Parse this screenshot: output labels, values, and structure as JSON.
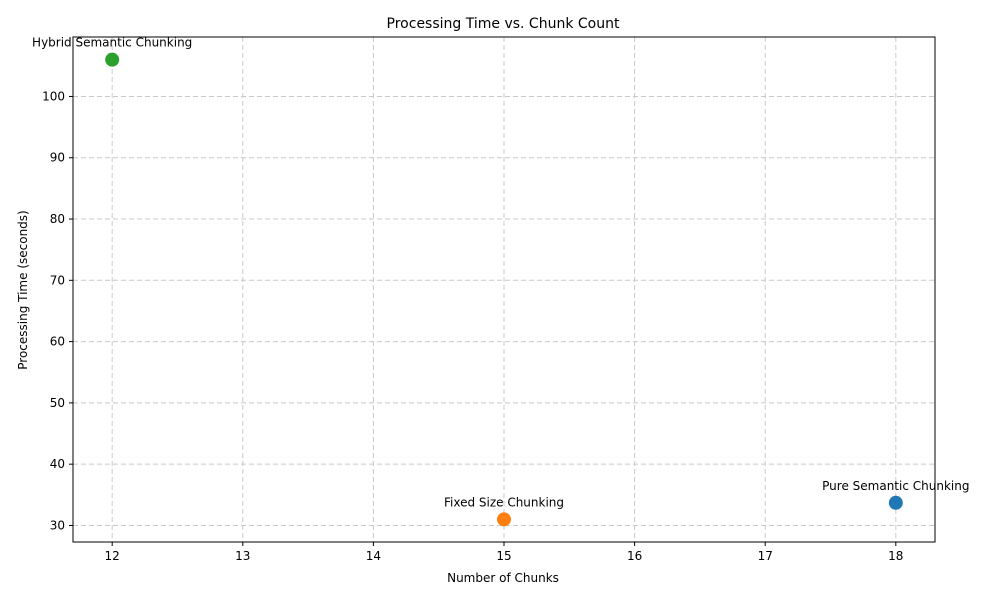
{
  "chart_data": {
    "type": "scatter",
    "title": "Processing Time vs. Chunk Count",
    "xlabel": "Number of Chunks",
    "ylabel": "Processing Time (seconds)",
    "xlim": [
      11.7,
      18.3
    ],
    "ylim": [
      27.3,
      109.7
    ],
    "xticks": [
      12,
      13,
      14,
      15,
      16,
      17,
      18
    ],
    "yticks": [
      30,
      40,
      50,
      60,
      70,
      80,
      90,
      100
    ],
    "grid": true,
    "points": [
      {
        "label": "Pure Semantic Chunking",
        "x": 18,
        "y": 33.7,
        "color": "#1f77b4"
      },
      {
        "label": "Fixed Size Chunking",
        "x": 15,
        "y": 31.0,
        "color": "#ff7f0e"
      },
      {
        "label": "Hybrid Semantic Chunking",
        "x": 12,
        "y": 106.0,
        "color": "#2ca02c"
      }
    ]
  }
}
